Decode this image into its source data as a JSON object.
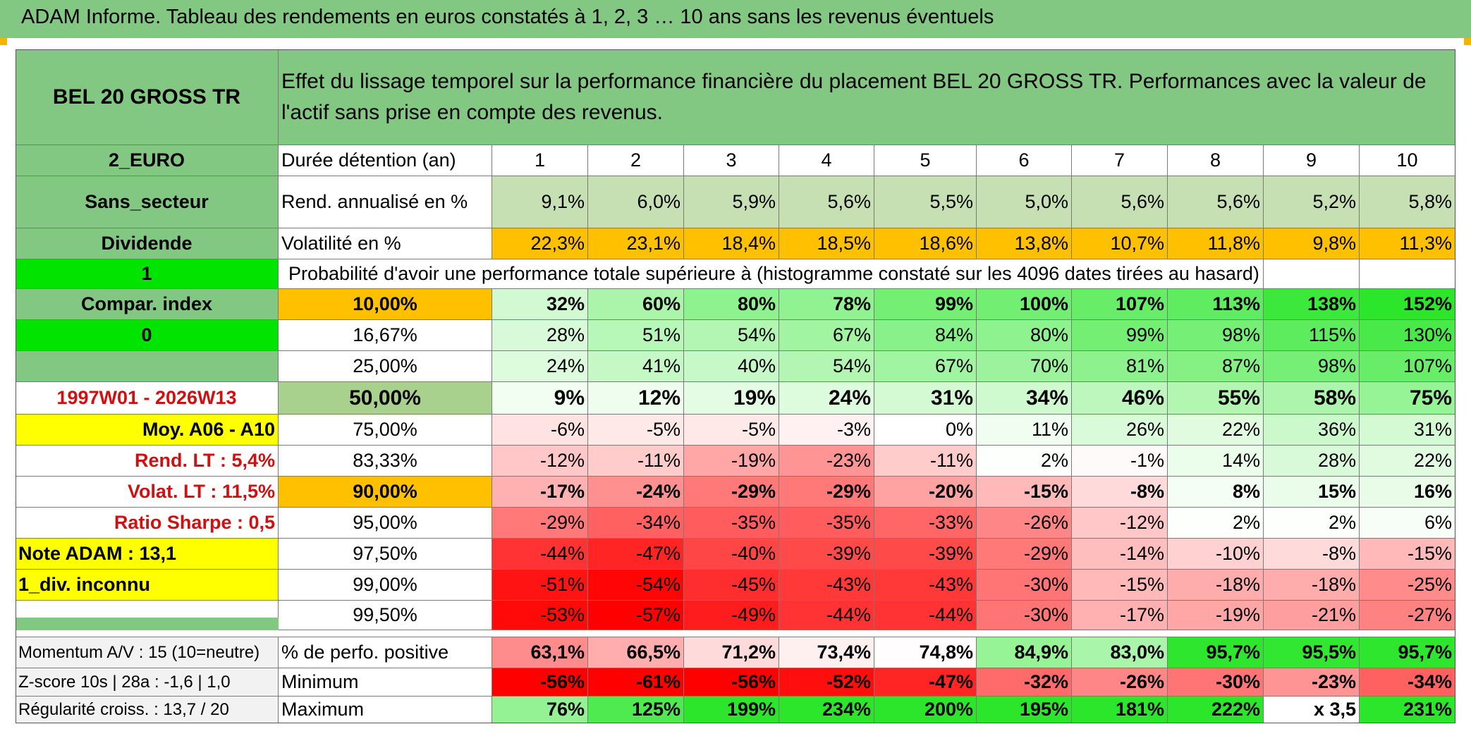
{
  "title": "ADAM Informe. Tableau des rendements en euros constatés à 1, 2, 3 … 10 ans sans les revenus éventuels",
  "colors": {
    "header_green": "#82c882",
    "bright_green": "#00e400",
    "orange": "#ffc000",
    "yellow": "#ffff00",
    "light_green": "#c6e0b4",
    "gray": "#f2f2f2",
    "red_text": "#d01010"
  },
  "table": {
    "asset_name": "BEL 20 GROSS TR",
    "description": "Effet du lissage temporel sur la performance financière du placement BEL 20 GROSS TR. Performances avec la valeur de l'actif sans prise en compte des revenus.",
    "duration_label": "Durée détention (an)",
    "years": [
      "1",
      "2",
      "3",
      "4",
      "5",
      "6",
      "7",
      "8",
      "9",
      "10"
    ],
    "left_labels": {
      "currency": "2_EURO",
      "sector": "Sans_secteur",
      "income": "Dividende",
      "flag_1": "1",
      "compar": "Compar. index",
      "flag_0": "0",
      "empty": "",
      "period": "1997W01 - 2026W13",
      "moy": "Moy. A06 - A10",
      "rend_lt": "Rend. LT :   5,4%",
      "volat_lt": "Volat. LT :   11,5%",
      "sharpe": "Ratio Sharpe :   0,5",
      "note": "Note ADAM : 13,1",
      "div_info": "1_div. inconnu"
    },
    "rend_label": "Rend. annualisé en %",
    "rend_values": [
      "9,1%",
      "6,0%",
      "5,9%",
      "5,6%",
      "5,5%",
      "5,0%",
      "5,6%",
      "5,6%",
      "5,2%",
      "5,8%"
    ],
    "vol_label": "Volatilité en %",
    "vol_values": [
      "22,3%",
      "23,1%",
      "18,4%",
      "18,5%",
      "18,6%",
      "13,8%",
      "10,7%",
      "11,8%",
      "9,8%",
      "11,3%"
    ],
    "prob_label": "Probabilité d'avoir une performance totale supérieure à (histogramme constaté sur les 4096 dates tirées au hasard)",
    "prob_rows": [
      {
        "p": "10,00%",
        "v": [
          "32%",
          "60%",
          "80%",
          "78%",
          "99%",
          "100%",
          "107%",
          "113%",
          "138%",
          "152%"
        ]
      },
      {
        "p": "16,67%",
        "v": [
          "28%",
          "51%",
          "54%",
          "67%",
          "84%",
          "80%",
          "99%",
          "98%",
          "115%",
          "130%"
        ]
      },
      {
        "p": "25,00%",
        "v": [
          "24%",
          "41%",
          "40%",
          "54%",
          "67%",
          "70%",
          "81%",
          "87%",
          "98%",
          "107%"
        ]
      },
      {
        "p": "50,00%",
        "v": [
          "9%",
          "12%",
          "19%",
          "24%",
          "31%",
          "34%",
          "46%",
          "55%",
          "58%",
          "75%"
        ]
      },
      {
        "p": "75,00%",
        "v": [
          "-6%",
          "-5%",
          "-5%",
          "-3%",
          "0%",
          "11%",
          "26%",
          "22%",
          "36%",
          "31%"
        ]
      },
      {
        "p": "83,33%",
        "v": [
          "-12%",
          "-11%",
          "-19%",
          "-23%",
          "-11%",
          "2%",
          "-1%",
          "14%",
          "28%",
          "22%"
        ]
      },
      {
        "p": "90,00%",
        "v": [
          "-17%",
          "-24%",
          "-29%",
          "-29%",
          "-20%",
          "-15%",
          "-8%",
          "8%",
          "15%",
          "16%"
        ]
      },
      {
        "p": "95,00%",
        "v": [
          "-29%",
          "-34%",
          "-35%",
          "-35%",
          "-33%",
          "-26%",
          "-12%",
          "2%",
          "2%",
          "6%"
        ]
      },
      {
        "p": "97,50%",
        "v": [
          "-44%",
          "-47%",
          "-40%",
          "-39%",
          "-39%",
          "-29%",
          "-14%",
          "-10%",
          "-8%",
          "-15%"
        ]
      },
      {
        "p": "99,00%",
        "v": [
          "-51%",
          "-54%",
          "-45%",
          "-43%",
          "-43%",
          "-30%",
          "-15%",
          "-18%",
          "-18%",
          "-25%"
        ]
      },
      {
        "p": "99,50%",
        "v": [
          "-53%",
          "-57%",
          "-49%",
          "-44%",
          "-44%",
          "-30%",
          "-17%",
          "-19%",
          "-21%",
          "-27%"
        ]
      }
    ],
    "bottom_left": [
      "Momentum A/V : 15 (10=neutre)",
      "Z-score 10s | 28a : -1,6 | 1,0",
      "Régularité croiss. : 13,7 / 20"
    ],
    "bottom_rows": [
      {
        "label": "% de perfo. positive",
        "v": [
          "63,1%",
          "66,5%",
          "71,2%",
          "73,4%",
          "74,8%",
          "84,9%",
          "83,0%",
          "95,7%",
          "95,5%",
          "95,7%"
        ]
      },
      {
        "label": "Minimum",
        "v": [
          "-56%",
          "-61%",
          "-56%",
          "-52%",
          "-47%",
          "-32%",
          "-26%",
          "-30%",
          "-23%",
          "-34%"
        ]
      },
      {
        "label": "Maximum",
        "v": [
          "76%",
          "125%",
          "199%",
          "234%",
          "200%",
          "195%",
          "181%",
          "222%",
          "x 3,5",
          "231%"
        ]
      }
    ]
  }
}
